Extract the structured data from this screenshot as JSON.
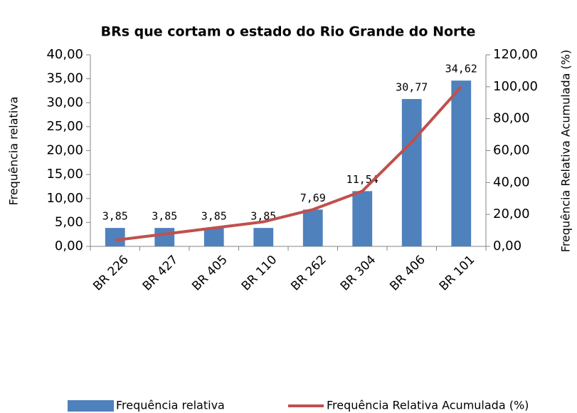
{
  "chart_data": {
    "type": "bar",
    "title": "BRs que cortam o estado do Rio Grande do Norte",
    "y_label": "Frequência relativa",
    "y2_label": "Frequência Relativa Acumulada (%)",
    "categories": [
      "BR 226",
      "BR 427",
      "BR 405",
      "BR 110",
      "BR 262",
      "BR 304",
      "BR 406",
      "BR 101"
    ],
    "series": [
      {
        "name": "Frequência relativa",
        "type": "bar",
        "color": "#4f81bd",
        "values": [
          3.85,
          3.85,
          3.85,
          3.85,
          7.69,
          11.54,
          30.77,
          34.62
        ],
        "value_labels": [
          "3,85",
          "3,85",
          "3,85",
          "3,85",
          "7,69",
          "11,54",
          "30,77",
          "34,62"
        ]
      },
      {
        "name": "Frequência Relativa Acumulada (%)",
        "type": "line",
        "color": "#c0504d",
        "axis": "y2",
        "values": [
          3.85,
          7.69,
          11.54,
          15.38,
          23.08,
          34.62,
          65.38,
          100.0
        ]
      }
    ],
    "ylim": [
      0,
      40
    ],
    "yticks": [
      {
        "value": 0,
        "label": "0,00"
      },
      {
        "value": 5,
        "label": "5,00"
      },
      {
        "value": 10,
        "label": "10,00"
      },
      {
        "value": 15,
        "label": "15,00"
      },
      {
        "value": 20,
        "label": "20,00"
      },
      {
        "value": 25,
        "label": "25,00"
      },
      {
        "value": 30,
        "label": "30,00"
      },
      {
        "value": 35,
        "label": "35,00"
      },
      {
        "value": 40,
        "label": "40,00"
      }
    ],
    "y2lim": [
      0,
      120
    ],
    "y2ticks": [
      {
        "value": 0,
        "label": "0,00"
      },
      {
        "value": 20,
        "label": "20,00"
      },
      {
        "value": 40,
        "label": "40,00"
      },
      {
        "value": 60,
        "label": "60,00"
      },
      {
        "value": 80,
        "label": "80,00"
      },
      {
        "value": 100,
        "label": "100,00"
      },
      {
        "value": 120,
        "label": "120,00"
      }
    ],
    "grid": false,
    "legend": "bottom"
  }
}
